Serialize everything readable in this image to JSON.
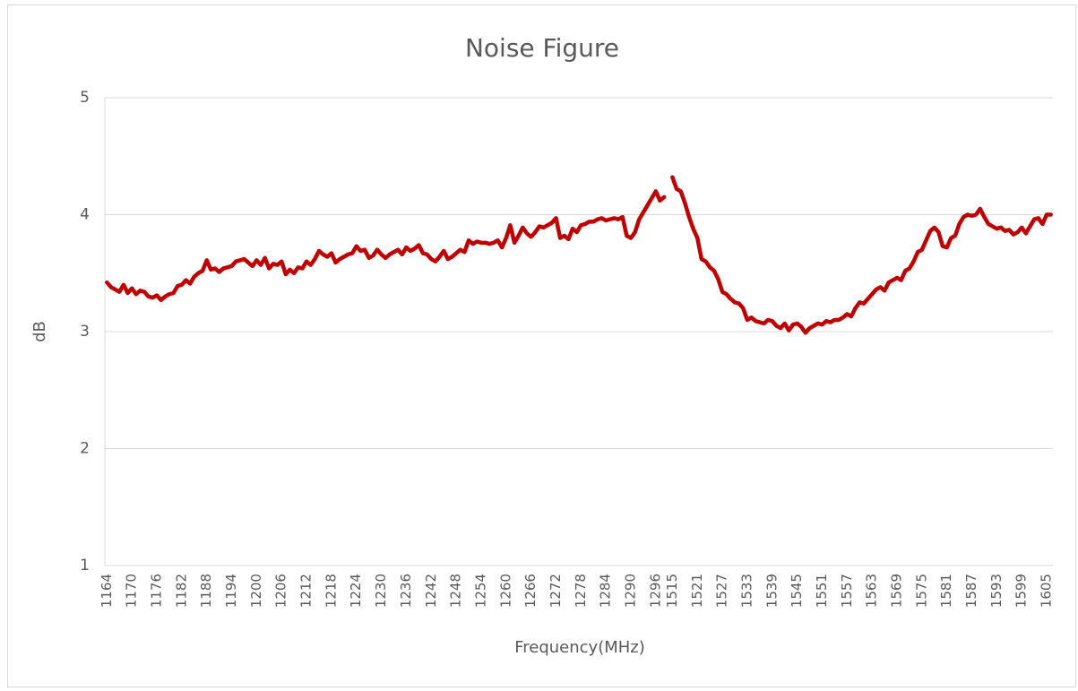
{
  "chart_data": {
    "type": "line",
    "title": "Noise Figure",
    "x_label": "Frequency(MHz)",
    "y_label": "dB",
    "categories": [
      "1164",
      null,
      null,
      null,
      null,
      null,
      "1170",
      null,
      null,
      null,
      null,
      null,
      "1176",
      null,
      null,
      null,
      null,
      null,
      "1182",
      null,
      null,
      null,
      null,
      null,
      "1188",
      null,
      null,
      null,
      null,
      null,
      "1194",
      null,
      null,
      null,
      null,
      null,
      "1200",
      null,
      null,
      null,
      null,
      null,
      "1206",
      null,
      null,
      null,
      null,
      null,
      "1212",
      null,
      null,
      null,
      null,
      null,
      "1218",
      null,
      null,
      null,
      null,
      null,
      "1224",
      null,
      null,
      null,
      null,
      null,
      "1230",
      null,
      null,
      null,
      null,
      null,
      "1236",
      null,
      null,
      null,
      null,
      null,
      "1242",
      null,
      null,
      null,
      null,
      null,
      "1248",
      null,
      null,
      null,
      null,
      null,
      "1254",
      null,
      null,
      null,
      null,
      null,
      "1260",
      null,
      null,
      null,
      null,
      null,
      "1266",
      null,
      null,
      null,
      null,
      null,
      "1272",
      null,
      null,
      null,
      null,
      null,
      "1278",
      null,
      null,
      null,
      null,
      null,
      "1284",
      null,
      null,
      null,
      null,
      null,
      "1290",
      null,
      null,
      null,
      null,
      null,
      "1296",
      null,
      null,
      null,
      "1515",
      null,
      null,
      null,
      null,
      null,
      "1521",
      null,
      null,
      null,
      null,
      null,
      "1527",
      null,
      null,
      null,
      null,
      null,
      "1533",
      null,
      null,
      null,
      null,
      null,
      "1539",
      null,
      null,
      null,
      null,
      null,
      "1545",
      null,
      null,
      null,
      null,
      null,
      "1551",
      null,
      null,
      null,
      null,
      null,
      "1557",
      null,
      null,
      null,
      null,
      null,
      "1563",
      null,
      null,
      null,
      null,
      null,
      "1569",
      null,
      null,
      null,
      null,
      null,
      "1575",
      null,
      null,
      null,
      null,
      null,
      "1581",
      null,
      null,
      null,
      null,
      null,
      "1587",
      null,
      null,
      null,
      null,
      null,
      "1593",
      null,
      null,
      null,
      null,
      null,
      "1599",
      null,
      null,
      null,
      null,
      null,
      "1605",
      null
    ],
    "series": [
      {
        "color": "#c00000",
        "values": [
          3.42,
          3.38,
          3.36,
          3.34,
          3.4,
          3.33,
          3.37,
          3.32,
          3.35,
          3.34,
          3.3,
          3.29,
          3.31,
          3.27,
          3.3,
          3.32,
          3.33,
          3.39,
          3.4,
          3.44,
          3.41,
          3.47,
          3.5,
          3.52,
          3.61,
          3.53,
          3.54,
          3.51,
          3.54,
          3.55,
          3.56,
          3.6,
          3.61,
          3.62,
          3.59,
          3.56,
          3.61,
          3.57,
          3.63,
          3.54,
          3.58,
          3.57,
          3.6,
          3.49,
          3.53,
          3.5,
          3.55,
          3.54,
          3.6,
          3.57,
          3.62,
          3.69,
          3.66,
          3.64,
          3.67,
          3.59,
          3.62,
          3.64,
          3.66,
          3.67,
          3.73,
          3.69,
          3.7,
          3.63,
          3.65,
          3.7,
          3.66,
          3.63,
          3.66,
          3.68,
          3.7,
          3.66,
          3.72,
          3.69,
          3.71,
          3.74,
          3.67,
          3.66,
          3.62,
          3.6,
          3.64,
          3.69,
          3.62,
          3.64,
          3.67,
          3.7,
          3.68,
          3.78,
          3.75,
          3.77,
          3.76,
          3.76,
          3.75,
          3.76,
          3.78,
          3.72,
          3.8,
          3.91,
          3.76,
          3.82,
          3.89,
          3.84,
          3.81,
          3.85,
          3.9,
          3.89,
          3.91,
          3.93,
          3.97,
          3.8,
          3.82,
          3.79,
          3.88,
          3.85,
          3.91,
          3.92,
          3.94,
          3.94,
          3.96,
          3.97,
          3.95,
          3.96,
          3.97,
          3.96,
          3.98,
          3.82,
          3.8,
          3.85,
          3.96,
          4.02,
          4.08,
          4.14,
          4.2,
          4.12,
          4.15,
          null,
          4.32,
          4.22,
          4.2,
          4.1,
          3.98,
          3.88,
          3.8,
          3.62,
          3.6,
          3.55,
          3.52,
          3.45,
          3.34,
          3.32,
          3.28,
          3.25,
          3.24,
          3.2,
          3.1,
          3.12,
          3.09,
          3.08,
          3.07,
          3.1,
          3.09,
          3.05,
          3.03,
          3.07,
          3.01,
          3.06,
          3.07,
          3.04,
          2.99,
          3.03,
          3.05,
          3.07,
          3.06,
          3.09,
          3.08,
          3.1,
          3.1,
          3.12,
          3.15,
          3.13,
          3.2,
          3.25,
          3.24,
          3.28,
          3.32,
          3.36,
          3.38,
          3.35,
          3.42,
          3.44,
          3.46,
          3.44,
          3.52,
          3.54,
          3.6,
          3.68,
          3.7,
          3.78,
          3.86,
          3.89,
          3.85,
          3.73,
          3.72,
          3.8,
          3.82,
          3.92,
          3.98,
          4.0,
          3.99,
          4.0,
          4.05,
          3.98,
          3.92,
          3.9,
          3.88,
          3.89,
          3.86,
          3.87,
          3.83,
          3.85,
          3.89,
          3.84,
          3.9,
          3.96,
          3.97,
          3.92,
          4.0,
          4.0
        ]
      }
    ],
    "ylim": [
      1,
      5
    ],
    "yticks": [
      1,
      2,
      3,
      4,
      5
    ],
    "grid": true
  }
}
